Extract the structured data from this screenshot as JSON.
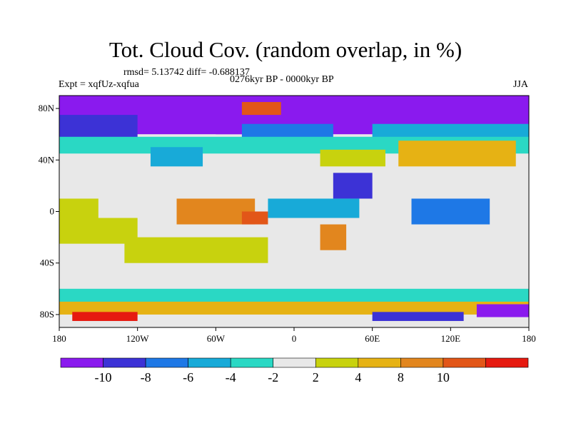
{
  "chart_data": {
    "type": "heatmap",
    "title": "Tot. Cloud Cov. (random overlap, in %)",
    "stats_text": "rmsd= 5.13742 diff= -0.688137",
    "period_text": "0276kyr BP - 0000kyr BP",
    "experiment_text": "Expt = xqfUz-xqfua",
    "season_text": "JJA",
    "x_ticks": [
      "180",
      "120W",
      "60W",
      "0",
      "60E",
      "120E",
      "180"
    ],
    "x_tick_values": [
      -180,
      -120,
      -60,
      0,
      60,
      120,
      180
    ],
    "y_ticks": [
      "80N",
      "40N",
      "0",
      "40S",
      "80S"
    ],
    "y_tick_values": [
      80,
      40,
      0,
      -40,
      -80
    ],
    "xlim": [
      -180,
      180
    ],
    "ylim": [
      -90,
      90
    ],
    "colorbar": {
      "labels": [
        "-10",
        "-8",
        "-6",
        "-4",
        "-2",
        "2",
        "4",
        "8",
        "10"
      ],
      "colors": [
        "#8a1aee",
        "#3c32d6",
        "#1e78e6",
        "#18aad8",
        "#2ad8c4",
        "#e8e8e8",
        "#c8d20e",
        "#e6b214",
        "#e2861e",
        "#e25618",
        "#e61a10"
      ]
    },
    "regions": [
      {
        "lon": [
          -180,
          180
        ],
        "lat": [
          -90,
          90
        ],
        "bin": 5
      },
      {
        "lon": [
          -180,
          180
        ],
        "lat": [
          60,
          90
        ],
        "bin": 0
      },
      {
        "lon": [
          -60,
          -20
        ],
        "lat": [
          60,
          82
        ],
        "bin": 0
      },
      {
        "lon": [
          -180,
          -120
        ],
        "lat": [
          55,
          75
        ],
        "bin": 1
      },
      {
        "lon": [
          -40,
          30
        ],
        "lat": [
          55,
          68
        ],
        "bin": 2
      },
      {
        "lon": [
          60,
          180
        ],
        "lat": [
          55,
          68
        ],
        "bin": 3
      },
      {
        "lon": [
          -180,
          180
        ],
        "lat": [
          45,
          58
        ],
        "bin": 4
      },
      {
        "lon": [
          -40,
          -10
        ],
        "lat": [
          75,
          85
        ],
        "bin": 9
      },
      {
        "lon": [
          80,
          170
        ],
        "lat": [
          35,
          55
        ],
        "bin": 7
      },
      {
        "lon": [
          20,
          70
        ],
        "lat": [
          35,
          48
        ],
        "bin": 6
      },
      {
        "lon": [
          -110,
          -70
        ],
        "lat": [
          35,
          50
        ],
        "bin": 3
      },
      {
        "lon": [
          30,
          60
        ],
        "lat": [
          10,
          30
        ],
        "bin": 1
      },
      {
        "lon": [
          -90,
          -30
        ],
        "lat": [
          -10,
          10
        ],
        "bin": 8
      },
      {
        "lon": [
          -40,
          -20
        ],
        "lat": [
          -10,
          0
        ],
        "bin": 9
      },
      {
        "lon": [
          90,
          150
        ],
        "lat": [
          -10,
          10
        ],
        "bin": 2
      },
      {
        "lon": [
          -180,
          -150
        ],
        "lat": [
          -10,
          10
        ],
        "bin": 6
      },
      {
        "lon": [
          -130,
          -20
        ],
        "lat": [
          -40,
          -20
        ],
        "bin": 6
      },
      {
        "lon": [
          -180,
          -120
        ],
        "lat": [
          -25,
          -5
        ],
        "bin": 6
      },
      {
        "lon": [
          -20,
          50
        ],
        "lat": [
          -5,
          10
        ],
        "bin": 3
      },
      {
        "lon": [
          20,
          40
        ],
        "lat": [
          -30,
          -10
        ],
        "bin": 8
      },
      {
        "lon": [
          -180,
          180
        ],
        "lat": [
          -80,
          -65
        ],
        "bin": 7
      },
      {
        "lon": [
          -180,
          180
        ],
        "lat": [
          -70,
          -60
        ],
        "bin": 4
      },
      {
        "lon": [
          -170,
          -120
        ],
        "lat": [
          -85,
          -78
        ],
        "bin": 10
      },
      {
        "lon": [
          60,
          130
        ],
        "lat": [
          -85,
          -78
        ],
        "bin": 1
      },
      {
        "lon": [
          140,
          180
        ],
        "lat": [
          -82,
          -72
        ],
        "bin": 0
      }
    ]
  }
}
